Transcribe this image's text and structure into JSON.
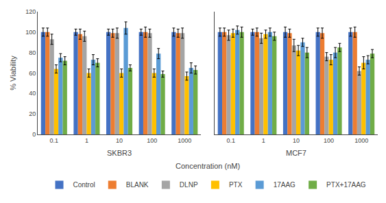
{
  "chart_data": [
    {
      "type": "bar",
      "title": "SKBR3",
      "xlabel": "Concentration (nM)",
      "ylabel": "% Viability",
      "categories": [
        "0.1",
        "1",
        "10",
        "100",
        "1000"
      ],
      "ylim": [
        0,
        120
      ],
      "yticks": [
        0,
        20,
        40,
        60,
        80,
        100,
        120
      ],
      "grid": false,
      "legend": "bottom",
      "series": [
        {
          "name": "Control",
          "color": "#4472C4",
          "values": [
            100,
            100,
            100,
            100,
            100
          ],
          "errors": [
            4,
            3,
            3,
            3,
            4
          ]
        },
        {
          "name": "BLANK",
          "color": "#ED7D31",
          "values": [
            100,
            98,
            99,
            100,
            99
          ],
          "errors": [
            4,
            5,
            4,
            5,
            4
          ]
        },
        {
          "name": "DLNP",
          "color": "#A5A5A5",
          "values": [
            93,
            96,
            99,
            99,
            99
          ],
          "errors": [
            5,
            5,
            5,
            4,
            5
          ]
        },
        {
          "name": "PTX",
          "color": "#FFC000",
          "values": [
            64,
            60,
            60,
            60,
            57
          ],
          "errors": [
            4,
            4,
            4,
            4,
            4
          ]
        },
        {
          "name": "17AAG",
          "color": "#5B9BD5",
          "values": [
            75,
            73,
            104,
            79,
            65
          ],
          "errors": [
            4,
            5,
            6,
            5,
            5
          ]
        },
        {
          "name": "PTX+17AAG",
          "color": "#70AD47",
          "values": [
            72,
            70,
            65,
            59,
            63
          ],
          "errors": [
            4,
            4,
            3,
            3,
            4
          ]
        }
      ]
    },
    {
      "type": "bar",
      "title": "MCF7",
      "categories": [
        "0.1",
        "1",
        "10",
        "100",
        "1000"
      ],
      "ylim": [
        0,
        120
      ],
      "yticks": [
        0,
        20,
        40,
        60,
        80,
        100,
        120
      ],
      "grid": false,
      "tick_labels": "x",
      "series": [
        {
          "name": "Control",
          "color": "#4472C4",
          "values": [
            100,
            100,
            100,
            100,
            100
          ],
          "errors": [
            4,
            3,
            5,
            4,
            4
          ]
        },
        {
          "name": "BLANK",
          "color": "#ED7D31",
          "values": [
            100,
            100,
            99,
            99,
            100
          ],
          "errors": [
            4,
            4,
            4,
            5,
            5
          ]
        },
        {
          "name": "DLNP",
          "color": "#A5A5A5",
          "values": [
            97,
            94,
            87,
            76,
            62
          ],
          "errors": [
            5,
            5,
            6,
            4,
            4
          ]
        },
        {
          "name": "PTX",
          "color": "#FFC000",
          "values": [
            99,
            98,
            82,
            73,
            70
          ],
          "errors": [
            4,
            4,
            5,
            5,
            6
          ]
        },
        {
          "name": "17AAG",
          "color": "#5B9BD5",
          "values": [
            102,
            100,
            90,
            80,
            73
          ],
          "errors": [
            4,
            4,
            4,
            5,
            4
          ]
        },
        {
          "name": "PTX+17AAG",
          "color": "#70AD47",
          "values": [
            100,
            96,
            80,
            85,
            79
          ],
          "errors": [
            5,
            4,
            5,
            4,
            4
          ]
        }
      ]
    }
  ]
}
